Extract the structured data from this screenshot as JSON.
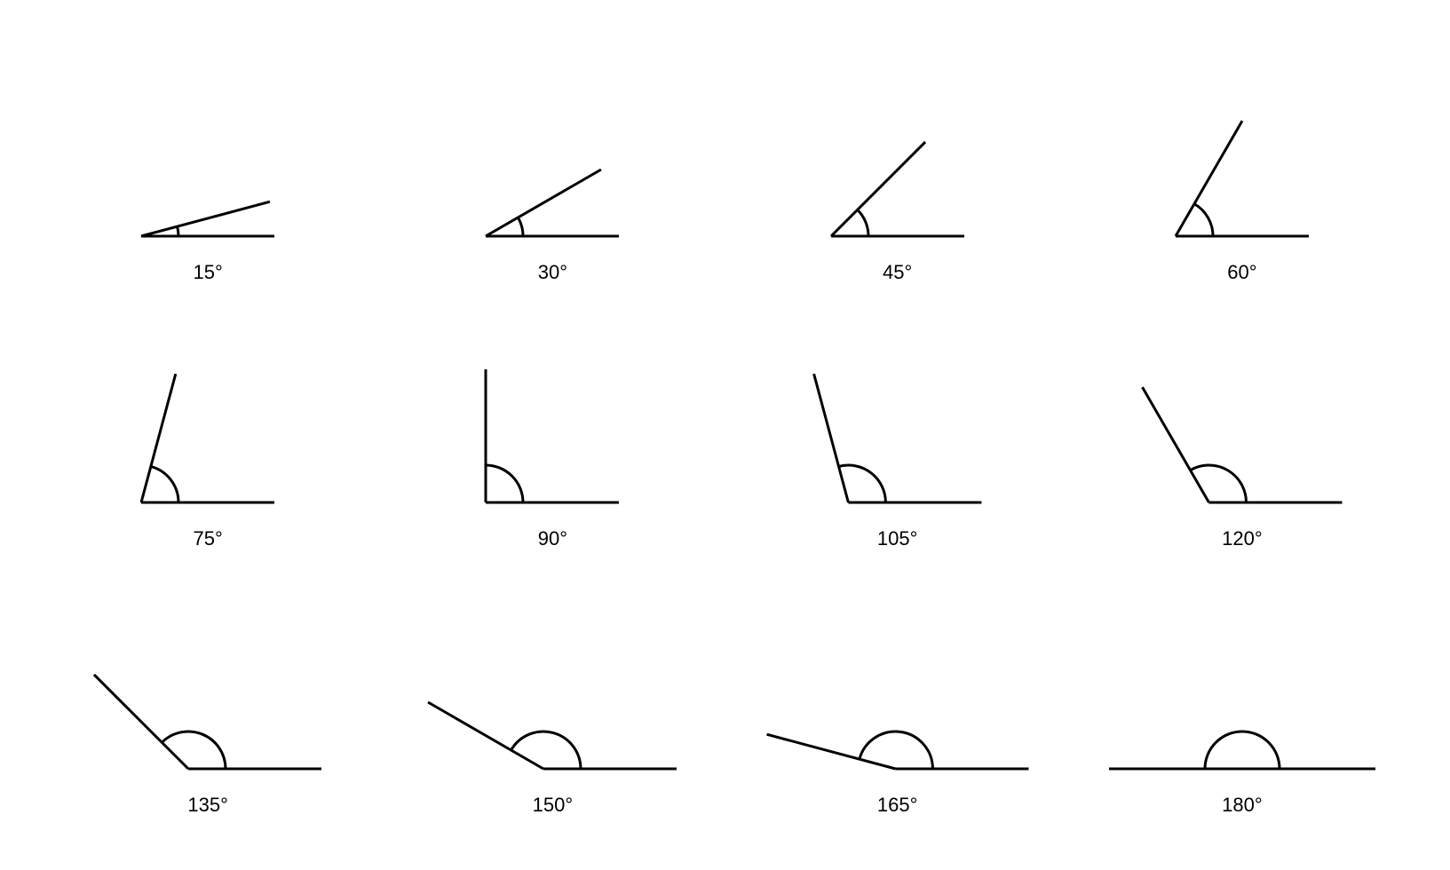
{
  "diagram": {
    "type": "infographic",
    "background_color": "#ffffff",
    "stroke_color": "#000000",
    "stroke_width": 3,
    "arc_stroke_width": 3,
    "label_fontsize": 22,
    "label_color": "#000000",
    "ray_length": 150,
    "arc_radius": 42,
    "grid_cols": 4,
    "grid_rows": 3,
    "angles": [
      {
        "degrees": 15,
        "label": "15°"
      },
      {
        "degrees": 30,
        "label": "30°"
      },
      {
        "degrees": 45,
        "label": "45°"
      },
      {
        "degrees": 60,
        "label": "60°"
      },
      {
        "degrees": 75,
        "label": "75°"
      },
      {
        "degrees": 90,
        "label": "90°"
      },
      {
        "degrees": 105,
        "label": "105°"
      },
      {
        "degrees": 120,
        "label": "120°"
      },
      {
        "degrees": 135,
        "label": "135°"
      },
      {
        "degrees": 150,
        "label": "150°"
      },
      {
        "degrees": 165,
        "label": "165°"
      },
      {
        "degrees": 180,
        "label": "180°"
      }
    ]
  }
}
